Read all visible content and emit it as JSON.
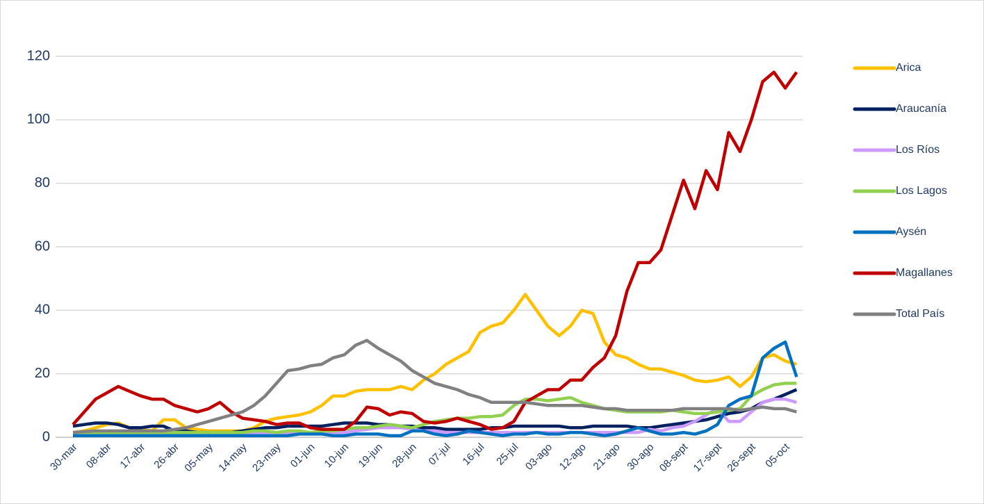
{
  "chart_data": {
    "type": "line",
    "categories": [
      "30-mar",
      null,
      null,
      "08-abr",
      null,
      null,
      "17-abr",
      null,
      null,
      "26-abr",
      null,
      null,
      "05-may",
      null,
      null,
      "14-may",
      null,
      null,
      "23-may",
      null,
      null,
      "01-jun",
      null,
      null,
      "10-jun",
      null,
      null,
      "19-jun",
      null,
      null,
      "28-jun",
      null,
      null,
      "07-jul",
      null,
      null,
      "16-jul",
      null,
      null,
      "25-jul",
      null,
      null,
      "03-ago",
      null,
      null,
      "12-ago",
      null,
      null,
      "21-ago",
      null,
      null,
      "30-ago",
      null,
      null,
      "08-sept",
      null,
      null,
      "17-sept",
      null,
      null,
      "26-sept",
      null,
      null,
      "05-oct",
      null
    ],
    "ylim": [
      0,
      120
    ],
    "yticks": [
      0,
      20,
      40,
      60,
      80,
      100,
      120
    ],
    "grid": true,
    "legend": "right",
    "series": [
      {
        "name": "Arica",
        "color": "#ffc000",
        "values": [
          1.5,
          2,
          3,
          4,
          4.5,
          3,
          2.5,
          2,
          5.5,
          5.5,
          3,
          2.5,
          2,
          2,
          2,
          2,
          3,
          5,
          6,
          6.5,
          7,
          8,
          10,
          13,
          13,
          14.5,
          15,
          15,
          15,
          16,
          15,
          18,
          20,
          23,
          25,
          27,
          33,
          35,
          36,
          40,
          45,
          40,
          35,
          32,
          35,
          40,
          39,
          30,
          26,
          25,
          23,
          21.5,
          21.5,
          20.5,
          19.5,
          18,
          17.5,
          18,
          19,
          16,
          19,
          25,
          26,
          24,
          23
        ]
      },
      {
        "name": "Araucanía",
        "color": "#002060",
        "values": [
          3.5,
          4,
          4.5,
          4.5,
          4,
          3,
          3,
          3.5,
          3.5,
          2,
          2,
          1.5,
          1.5,
          1.5,
          1.5,
          2,
          2.5,
          3,
          3,
          3.5,
          3.5,
          3.5,
          3.5,
          4,
          4.5,
          4.5,
          4.5,
          4,
          4,
          3.5,
          3.5,
          3,
          3,
          2.5,
          2.5,
          2.5,
          2.5,
          3,
          3,
          3.5,
          3.5,
          3.5,
          3.5,
          3.5,
          3,
          3,
          3.5,
          3.5,
          3.5,
          3.5,
          3,
          3,
          3.5,
          4,
          4.5,
          5,
          5.5,
          6.5,
          7.5,
          8,
          9,
          11,
          12,
          13.5,
          15
        ]
      },
      {
        "name": "Los Ríos",
        "color": "#cc99ff",
        "values": [
          1,
          1,
          1,
          1,
          1,
          1,
          1,
          1,
          1,
          1,
          1,
          1,
          1,
          1,
          1,
          1,
          1.5,
          1.5,
          1.5,
          1.5,
          1.5,
          1.5,
          1.5,
          1.5,
          1.5,
          2,
          2.5,
          3,
          3,
          3,
          2.5,
          2,
          2,
          1.5,
          1.5,
          1.5,
          1.5,
          1.5,
          1.5,
          1.5,
          1.5,
          1.5,
          1.5,
          1.5,
          1.5,
          1.5,
          1.5,
          1.5,
          1.5,
          1.5,
          1.5,
          2.5,
          2,
          3,
          3.5,
          5,
          7,
          9,
          5,
          5,
          8,
          11,
          12,
          12,
          11
        ]
      },
      {
        "name": "Los Lagos",
        "color": "#92d050",
        "values": [
          1.5,
          1.5,
          1.5,
          1.5,
          1.5,
          1.5,
          1.5,
          1.5,
          1.5,
          1.5,
          1.5,
          1.5,
          1.5,
          1.5,
          1.5,
          1.5,
          2,
          2,
          1.5,
          2,
          2,
          1.5,
          2,
          2,
          2.5,
          3,
          3,
          3.5,
          4,
          3.5,
          3,
          4,
          5,
          5.5,
          6,
          6,
          6.5,
          6.5,
          7,
          10,
          12,
          12,
          11.5,
          12,
          12.5,
          11,
          10,
          9,
          8.5,
          8,
          8,
          8,
          8,
          8.5,
          8,
          7.5,
          7.5,
          8,
          8.5,
          9,
          13,
          15,
          16.5,
          17,
          17
        ]
      },
      {
        "name": "Aysén",
        "color": "#0070c0",
        "values": [
          0.5,
          0.5,
          0.5,
          0.5,
          0.5,
          0.5,
          0.5,
          0.5,
          0.5,
          0.5,
          0.5,
          0.5,
          0.5,
          0.5,
          0.5,
          0.5,
          0.5,
          0.5,
          0.5,
          0.5,
          1,
          1,
          1,
          0.5,
          0.5,
          1,
          1,
          1,
          0.5,
          0.5,
          2,
          2,
          1,
          0.5,
          1,
          2,
          1.5,
          1,
          0.5,
          1,
          1,
          1.5,
          1,
          1,
          1.5,
          1.5,
          1,
          0.5,
          1,
          2,
          3,
          2,
          1,
          1,
          1.5,
          1,
          2,
          4,
          10,
          12,
          13,
          25,
          28,
          30,
          19
        ]
      },
      {
        "name": "Magallanes",
        "color": "#c00000",
        "values": [
          4,
          8,
          12,
          14,
          16,
          14.5,
          13,
          12,
          12,
          10,
          9,
          8,
          9,
          11,
          8,
          6,
          5.5,
          5,
          4,
          4.5,
          4.5,
          3,
          2.5,
          2.5,
          2.5,
          5,
          9.5,
          9,
          7,
          8,
          7.5,
          5,
          4.5,
          5,
          6,
          5,
          4,
          2.5,
          3,
          5,
          11,
          13,
          15,
          15,
          18,
          18,
          22,
          25,
          32,
          46,
          55,
          55,
          59,
          70,
          81,
          72,
          84,
          78,
          96,
          90,
          100,
          112,
          115,
          110,
          115
        ]
      },
      {
        "name": "Total País",
        "color": "#808080",
        "values": [
          1.5,
          1.8,
          2,
          2,
          2,
          2,
          2,
          2,
          2,
          2.5,
          3,
          4,
          5,
          6,
          7,
          8,
          10,
          13,
          17,
          21,
          21.5,
          22.5,
          23,
          25,
          26,
          29,
          30.5,
          28,
          26,
          24,
          21,
          19,
          17,
          16,
          15,
          13.5,
          12.5,
          11,
          11,
          11,
          11,
          10.5,
          10,
          10,
          10,
          10,
          9.5,
          9,
          9,
          8.5,
          8.5,
          8.5,
          8.5,
          8.5,
          9,
          9,
          9,
          9,
          9,
          8.5,
          9,
          9.5,
          9,
          9,
          8
        ]
      }
    ]
  }
}
